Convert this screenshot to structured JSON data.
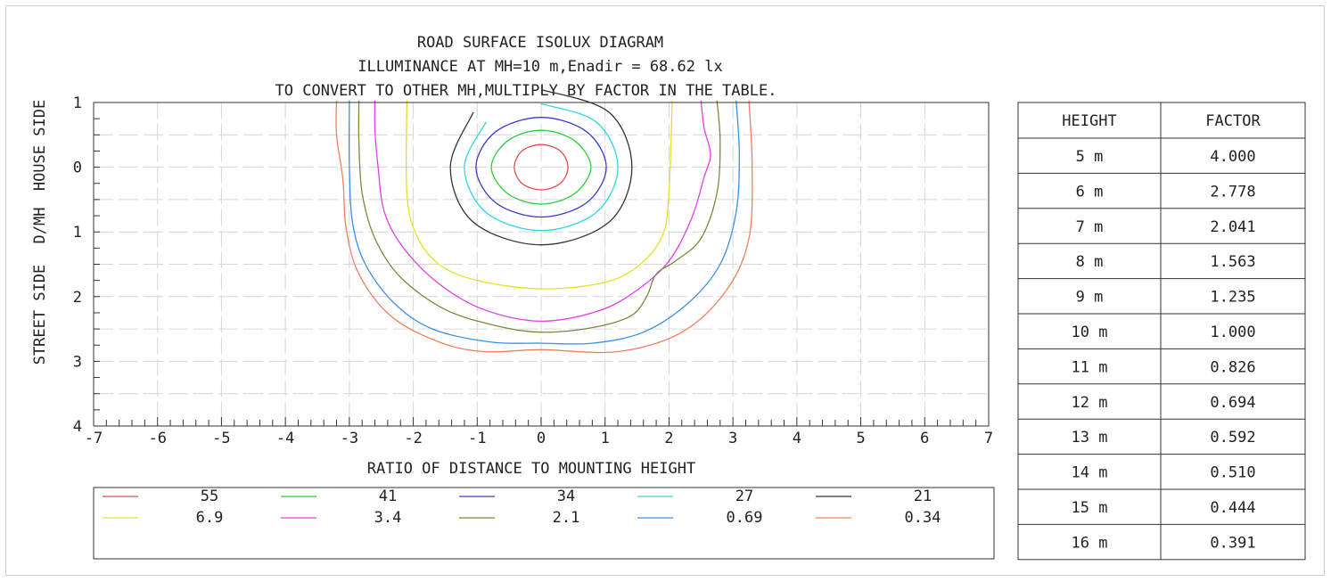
{
  "chart_data": {
    "type": "line",
    "title": "ROAD SURFACE ISOLUX DIAGRAM",
    "subtitle_lines": [
      "ILLUMINANCE AT MH=10 m,Enadir  = 68.62 lx",
      "TO CONVERT TO OTHER MH,MULTIPLY BY FACTOR IN THE TABLE."
    ],
    "xlabel": "RATIO OF DISTANCE TO MOUNTING HEIGHT",
    "ylabel_parts": [
      "STREET SIDE",
      "D/MH",
      "HOUSE SIDE"
    ],
    "xlim": [
      -7,
      7
    ],
    "ylim": [
      -1,
      4
    ],
    "x_ticks": [
      "-7",
      "-6",
      "-5",
      "-4",
      "-3",
      "-2",
      "-1",
      "0",
      "1",
      "2",
      "3",
      "4",
      "5",
      "6",
      "7"
    ],
    "y_ticks": [
      {
        "value": -1,
        "label": "1"
      },
      {
        "value": 0,
        "label": "0"
      },
      {
        "value": 1,
        "label": "1"
      },
      {
        "value": 2,
        "label": "2"
      },
      {
        "value": 3,
        "label": "3"
      },
      {
        "value": 4,
        "label": "4"
      }
    ],
    "grid": true,
    "legend_position": "bottom",
    "series": [
      {
        "name": "55",
        "color": "#e05050",
        "points": [
          [
            0,
            -0.35
          ],
          [
            0.3,
            -0.25
          ],
          [
            0.42,
            0
          ],
          [
            0.3,
            0.25
          ],
          [
            0,
            0.35
          ],
          [
            -0.3,
            0.25
          ],
          [
            -0.42,
            0
          ],
          [
            -0.3,
            -0.25
          ]
        ]
      },
      {
        "name": "41",
        "color": "#2ecc40",
        "points": [
          [
            0,
            -0.57
          ],
          [
            0.52,
            -0.41
          ],
          [
            0.78,
            0
          ],
          [
            0.52,
            0.41
          ],
          [
            0,
            0.57
          ],
          [
            -0.52,
            0.41
          ],
          [
            -0.78,
            0
          ],
          [
            -0.52,
            -0.41
          ]
        ]
      },
      {
        "name": "34",
        "color": "#3a3acf",
        "points": [
          [
            0,
            -0.77
          ],
          [
            0.71,
            -0.55
          ],
          [
            1.02,
            0
          ],
          [
            0.71,
            0.55
          ],
          [
            0,
            0.77
          ],
          [
            -0.71,
            0.55
          ],
          [
            -1.02,
            0
          ],
          [
            -0.71,
            -0.55
          ]
        ]
      },
      {
        "name": "27",
        "color": "#30d8e0",
        "points": [
          [
            0,
            -0.98
          ],
          [
            0.86,
            -0.7
          ],
          [
            1.2,
            0
          ],
          [
            0.86,
            0.7
          ],
          [
            0,
            0.98
          ],
          [
            -0.86,
            0.7
          ],
          [
            -1.2,
            0
          ],
          [
            -0.86,
            -0.7
          ]
        ]
      },
      {
        "name": "21",
        "color": "#333333",
        "points": [
          [
            0,
            -1.2
          ],
          [
            1.06,
            -0.85
          ],
          [
            1.42,
            0
          ],
          [
            1.06,
            0.85
          ],
          [
            0,
            1.2
          ],
          [
            -1.06,
            0.85
          ],
          [
            -1.42,
            0
          ],
          [
            -1.06,
            -0.85
          ]
        ]
      },
      {
        "name": "6.9",
        "color": "#e6e022",
        "points": [
          [
            -2.1,
            -1.03
          ],
          [
            -2.1,
            0.4
          ],
          [
            -1.95,
            1.05
          ],
          [
            -1.6,
            1.5
          ],
          [
            -1,
            1.75
          ],
          [
            0,
            1.88
          ],
          [
            1,
            1.78
          ],
          [
            1.55,
            1.5
          ],
          [
            1.9,
            1.05
          ],
          [
            2.0,
            0.4
          ],
          [
            2.05,
            -1.03
          ]
        ]
      },
      {
        "name": "3.4",
        "color": "#e040e8",
        "points": [
          [
            -2.6,
            -1.03
          ],
          [
            -2.6,
            -0.6
          ],
          [
            -2.55,
            0
          ],
          [
            -2.45,
            0.7
          ],
          [
            -2.15,
            1.25
          ],
          [
            -1.6,
            1.8
          ],
          [
            -0.9,
            2.2
          ],
          [
            0,
            2.38
          ],
          [
            0.9,
            2.22
          ],
          [
            1.5,
            1.9
          ],
          [
            2.0,
            1.45
          ],
          [
            2.35,
            0.8
          ],
          [
            2.55,
            0.15
          ],
          [
            2.65,
            -0.2
          ],
          [
            2.55,
            -0.6
          ],
          [
            2.5,
            -1.03
          ]
        ]
      },
      {
        "name": "2.1",
        "color": "#7a8a3a",
        "points": [
          [
            -2.85,
            -1.03
          ],
          [
            -2.85,
            -0.4
          ],
          [
            -2.8,
            0.4
          ],
          [
            -2.6,
            1.1
          ],
          [
            -2.2,
            1.7
          ],
          [
            -1.5,
            2.2
          ],
          [
            -0.7,
            2.45
          ],
          [
            0,
            2.55
          ],
          [
            0.8,
            2.48
          ],
          [
            1.4,
            2.3
          ],
          [
            1.65,
            2.0
          ],
          [
            1.8,
            1.65
          ],
          [
            2.1,
            1.45
          ],
          [
            2.5,
            1.1
          ],
          [
            2.75,
            0.4
          ],
          [
            2.8,
            -0.4
          ],
          [
            2.75,
            -1.03
          ]
        ]
      },
      {
        "name": "0.69",
        "color": "#3a8fe8",
        "points": [
          [
            -3.0,
            -1.03
          ],
          [
            -3.0,
            0
          ],
          [
            -2.95,
            0.85
          ],
          [
            -2.75,
            1.5
          ],
          [
            -2.3,
            2.1
          ],
          [
            -1.7,
            2.5
          ],
          [
            -0.8,
            2.7
          ],
          [
            0,
            2.72
          ],
          [
            0.8,
            2.72
          ],
          [
            1.6,
            2.55
          ],
          [
            2.3,
            2.1
          ],
          [
            2.8,
            1.5
          ],
          [
            3.05,
            0.7
          ],
          [
            3.1,
            -0.2
          ],
          [
            3.05,
            -1.03
          ]
        ]
      },
      {
        "name": "0.34",
        "color": "#f08060",
        "points": [
          [
            -3.2,
            -1.03
          ],
          [
            -3.2,
            -0.5
          ],
          [
            -3.1,
            0.2
          ],
          [
            -3.05,
            0.95
          ],
          [
            -2.85,
            1.65
          ],
          [
            -2.35,
            2.3
          ],
          [
            -1.6,
            2.7
          ],
          [
            -0.9,
            2.85
          ],
          [
            0,
            2.82
          ],
          [
            1.2,
            2.85
          ],
          [
            2.2,
            2.55
          ],
          [
            2.9,
            1.9
          ],
          [
            3.25,
            1.1
          ],
          [
            3.3,
            0
          ],
          [
            3.25,
            -1.03
          ]
        ]
      }
    ]
  },
  "legend": {
    "rows": [
      [
        {
          "label": "55",
          "color": "#e05050"
        },
        {
          "label": "41",
          "color": "#2ecc40"
        },
        {
          "label": "34",
          "color": "#3a3acf"
        },
        {
          "label": "27",
          "color": "#30d8e0"
        },
        {
          "label": "21",
          "color": "#333333"
        }
      ],
      [
        {
          "label": "6.9",
          "color": "#e6e022"
        },
        {
          "label": "3.4",
          "color": "#e040e8"
        },
        {
          "label": "2.1",
          "color": "#7a8a3a"
        },
        {
          "label": "0.69",
          "color": "#3a8fe8"
        },
        {
          "label": "0.34",
          "color": "#f08060"
        }
      ]
    ]
  },
  "table": {
    "headers": [
      "HEIGHT",
      "FACTOR"
    ],
    "rows": [
      [
        "5 m",
        "4.000"
      ],
      [
        "6 m",
        "2.778"
      ],
      [
        "7 m",
        "2.041"
      ],
      [
        "8 m",
        "1.563"
      ],
      [
        "9 m",
        "1.235"
      ],
      [
        "10 m",
        "1.000"
      ],
      [
        "11 m",
        "0.826"
      ],
      [
        "12 m",
        "0.694"
      ],
      [
        "13 m",
        "0.592"
      ],
      [
        "14 m",
        "0.510"
      ],
      [
        "15 m",
        "0.444"
      ],
      [
        "16 m",
        "0.391"
      ]
    ]
  }
}
